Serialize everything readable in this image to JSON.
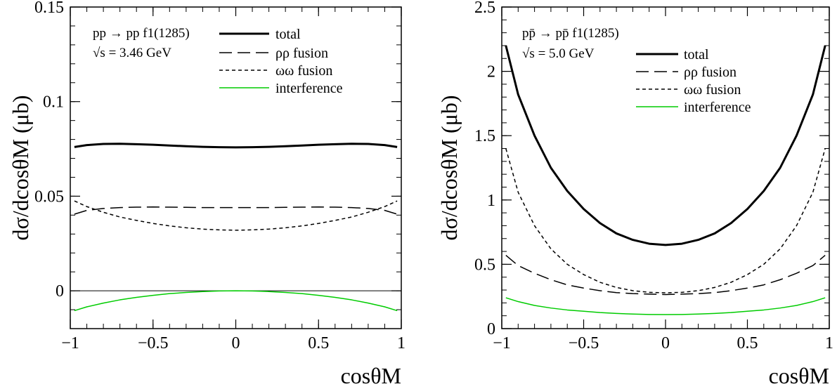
{
  "colors": {
    "total": "#000000",
    "rho": "#000000",
    "omega": "#000000",
    "interference": "#00cc00",
    "zero_line": "#000000"
  },
  "chart_data": [
    {
      "type": "line",
      "process": "pp → pp f1(1285)",
      "energy": "√s = 3.46 GeV",
      "xlabel": "cosθM",
      "ylabel": "dσ/dcosθM (μb)",
      "xlim": [
        -1,
        1
      ],
      "ylim": [
        -0.02,
        0.15
      ],
      "x_ticks": [
        -1,
        -0.5,
        0,
        0.5,
        1
      ],
      "x_tick_labels": [
        "−1",
        "−0.5",
        "0",
        "0.5",
        "1"
      ],
      "y_ticks": [
        0,
        0.05,
        0.1,
        0.15
      ],
      "y_tick_labels": [
        "0",
        "0.05",
        "0.1",
        "0.15"
      ],
      "zero_line": true,
      "legend": [
        "total",
        "ρρ fusion",
        "ωω fusion",
        "interference"
      ],
      "x": [
        -0.975,
        -0.9,
        -0.8,
        -0.7,
        -0.6,
        -0.5,
        -0.4,
        -0.3,
        -0.2,
        -0.1,
        0,
        0.1,
        0.2,
        0.3,
        0.4,
        0.5,
        0.6,
        0.7,
        0.8,
        0.9,
        0.975
      ],
      "series": [
        {
          "name": "total",
          "style": "solid-thick",
          "values": [
            0.076,
            0.077,
            0.0776,
            0.0777,
            0.0775,
            0.0772,
            0.0768,
            0.0764,
            0.0761,
            0.0759,
            0.0758,
            0.0759,
            0.0761,
            0.0764,
            0.0768,
            0.0772,
            0.0775,
            0.0777,
            0.0776,
            0.077,
            0.076
          ]
        },
        {
          "name": "ρρ fusion",
          "style": "long-dash",
          "values": [
            0.0405,
            0.0425,
            0.0435,
            0.044,
            0.0442,
            0.0443,
            0.0442,
            0.0441,
            0.044,
            0.044,
            0.044,
            0.044,
            0.044,
            0.0441,
            0.0442,
            0.0443,
            0.0442,
            0.044,
            0.0435,
            0.0425,
            0.0405
          ]
        },
        {
          "name": "ωω fusion",
          "style": "short-dash",
          "values": [
            0.0475,
            0.0445,
            0.0415,
            0.039,
            0.0372,
            0.0356,
            0.0343,
            0.0333,
            0.0326,
            0.0322,
            0.032,
            0.0322,
            0.0326,
            0.0333,
            0.0343,
            0.0356,
            0.0372,
            0.039,
            0.0415,
            0.0445,
            0.0475
          ]
        },
        {
          "name": "interference",
          "style": "solid-green",
          "values": [
            -0.0105,
            -0.0085,
            -0.0065,
            -0.0048,
            -0.0035,
            -0.0024,
            -0.0015,
            -0.0009,
            -0.0004,
            -0.0001,
            0,
            -0.0001,
            -0.0004,
            -0.0009,
            -0.0015,
            -0.0024,
            -0.0035,
            -0.0048,
            -0.0065,
            -0.0085,
            -0.0105
          ]
        }
      ]
    },
    {
      "type": "line",
      "process": "pp̄ → pp̄ f1(1285)",
      "energy": "√s = 5.0 GeV",
      "xlabel": "cosθM",
      "ylabel": "dσ/dcosθM (μb)",
      "xlim": [
        -1,
        1
      ],
      "ylim": [
        0,
        2.5
      ],
      "x_ticks": [
        -1,
        -0.5,
        0,
        0.5,
        1
      ],
      "x_tick_labels": [
        "−1",
        "−0.5",
        "0",
        "0.5",
        "1"
      ],
      "y_ticks": [
        0,
        0.5,
        1,
        1.5,
        2,
        2.5
      ],
      "y_tick_labels": [
        "0",
        "0.5",
        "1",
        "1.5",
        "2",
        "2.5"
      ],
      "zero_line": false,
      "legend": [
        "total",
        "ρρ fusion",
        "ωω fusion",
        "interference"
      ],
      "x": [
        -0.975,
        -0.9,
        -0.8,
        -0.7,
        -0.6,
        -0.5,
        -0.4,
        -0.3,
        -0.2,
        -0.1,
        0,
        0.1,
        0.2,
        0.3,
        0.4,
        0.5,
        0.6,
        0.7,
        0.8,
        0.9,
        0.975
      ],
      "series": [
        {
          "name": "total",
          "style": "solid-thick",
          "values": [
            2.2,
            1.82,
            1.5,
            1.25,
            1.07,
            0.93,
            0.82,
            0.74,
            0.69,
            0.66,
            0.65,
            0.66,
            0.69,
            0.74,
            0.82,
            0.93,
            1.07,
            1.25,
            1.5,
            1.82,
            2.2
          ]
        },
        {
          "name": "ρρ fusion",
          "style": "long-dash",
          "values": [
            0.57,
            0.49,
            0.43,
            0.38,
            0.34,
            0.315,
            0.295,
            0.28,
            0.272,
            0.268,
            0.265,
            0.268,
            0.272,
            0.28,
            0.295,
            0.315,
            0.34,
            0.38,
            0.43,
            0.49,
            0.57
          ]
        },
        {
          "name": "ωω fusion",
          "style": "short-dash",
          "values": [
            1.4,
            1.06,
            0.8,
            0.62,
            0.5,
            0.42,
            0.36,
            0.32,
            0.295,
            0.282,
            0.278,
            0.282,
            0.295,
            0.32,
            0.36,
            0.42,
            0.5,
            0.62,
            0.8,
            1.06,
            1.4
          ]
        },
        {
          "name": "interference",
          "style": "solid-green",
          "values": [
            0.24,
            0.21,
            0.18,
            0.16,
            0.145,
            0.135,
            0.125,
            0.118,
            0.113,
            0.11,
            0.109,
            0.11,
            0.113,
            0.118,
            0.125,
            0.135,
            0.145,
            0.16,
            0.18,
            0.21,
            0.24
          ]
        }
      ]
    }
  ]
}
